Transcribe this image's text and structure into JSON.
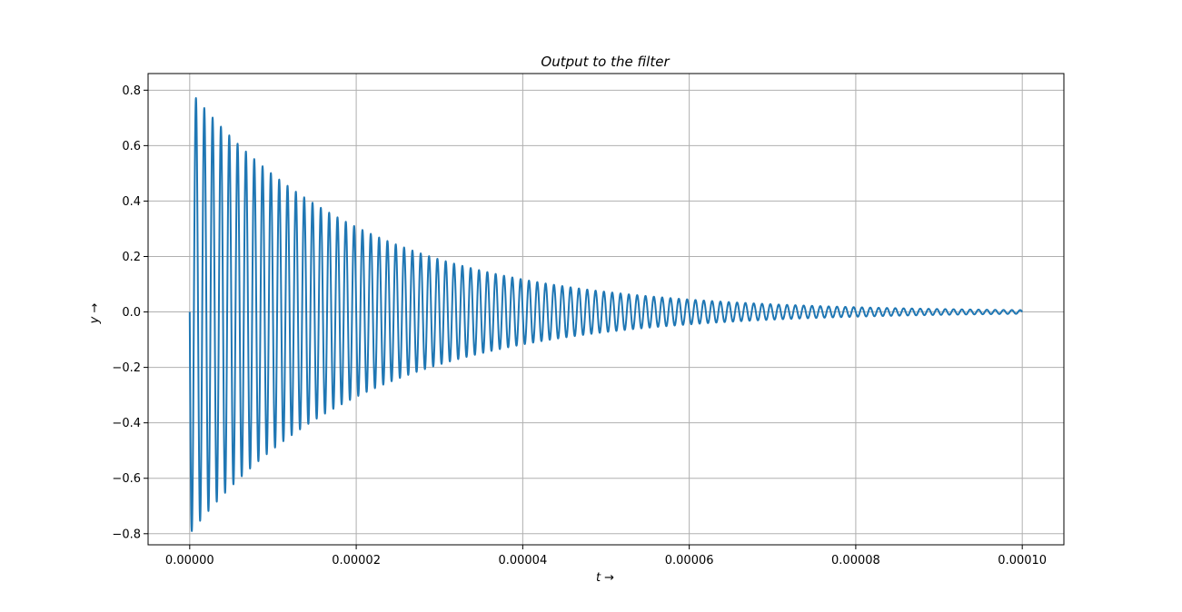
{
  "chart_data": {
    "type": "line",
    "title": "Output to the filter",
    "xlabel": "t →",
    "ylabel": "y →",
    "xlim": [
      -5e-06,
      0.000105
    ],
    "ylim": [
      -0.84,
      0.86
    ],
    "grid": true,
    "xticks": [
      0.0,
      2e-05,
      4e-05,
      6e-05,
      8e-05,
      0.0001
    ],
    "xtick_labels": [
      "0.00000",
      "0.00002",
      "0.00004",
      "0.00006",
      "0.00008",
      "0.00010"
    ],
    "yticks": [
      -0.8,
      -0.6,
      -0.4,
      -0.2,
      0.0,
      0.2,
      0.4,
      0.6,
      0.8
    ],
    "ytick_labels": [
      "−0.8",
      "−0.6",
      "−0.4",
      "−0.2",
      "0.0",
      "0.2",
      "0.4",
      "0.6",
      "0.8"
    ],
    "series": [
      {
        "color": "#1f77b4",
        "model": {
          "kind": "damped_sine",
          "t_start": 0.0,
          "t_end": 0.0001,
          "amplitude": 0.8,
          "frequency_hz": 1000000,
          "decay_rate_per_s": 48000,
          "phase_sign": -1
        }
      }
    ]
  }
}
